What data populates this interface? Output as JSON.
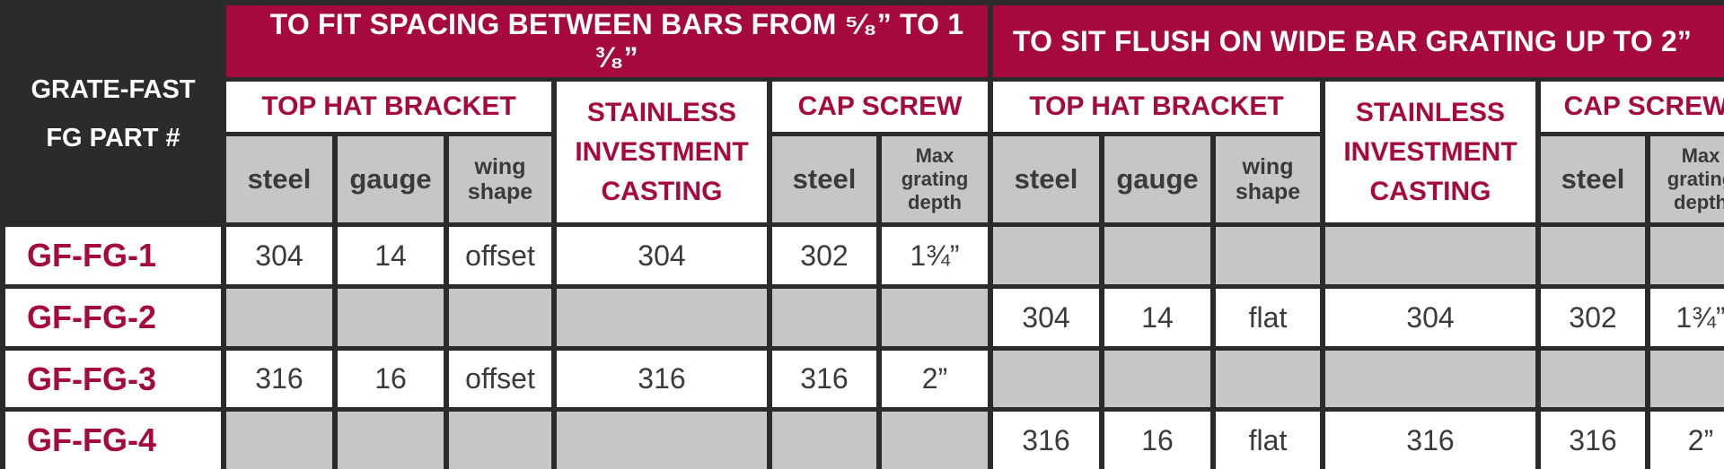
{
  "header": {
    "corner_line1": "GRATE-FAST",
    "corner_line2": "FG PART #",
    "banner_left": "TO FIT SPACING BETWEEN BARS FROM ⁵⁄₈” TO 1 ³⁄₈”",
    "banner_right": "TO SIT FLUSH ON WIDE BAR GRATING UP TO 2”"
  },
  "groups": {
    "top_hat_bracket": "TOP HAT BRACKET",
    "stainless_line1": "STAINLESS",
    "stainless_line2": "INVESTMENT",
    "stainless_line3": "CASTING",
    "cap_screw": "CAP SCREW"
  },
  "subheaders": {
    "steel": "steel",
    "gauge": "gauge",
    "wing_line1": "wing",
    "wing_line2": "shape",
    "max_line1": "Max",
    "max_line2": "grating",
    "max_line3": "depth"
  },
  "rows": [
    {
      "part": "GF-FG-1",
      "left": {
        "steel": "304",
        "gauge": "14",
        "wing": "offset",
        "casting": "304",
        "screw_steel": "302",
        "max_depth": "1¾”"
      },
      "right": null
    },
    {
      "part": "GF-FG-2",
      "left": null,
      "right": {
        "steel": "304",
        "gauge": "14",
        "wing": "flat",
        "casting": "304",
        "screw_steel": "302",
        "max_depth": "1¾”"
      }
    },
    {
      "part": "GF-FG-3",
      "left": {
        "steel": "316",
        "gauge": "16",
        "wing": "offset",
        "casting": "316",
        "screw_steel": "316",
        "max_depth": "2”"
      },
      "right": null
    },
    {
      "part": "GF-FG-4",
      "left": null,
      "right": {
        "steel": "316",
        "gauge": "16",
        "wing": "flat",
        "casting": "316",
        "screw_steel": "316",
        "max_depth": "2”"
      }
    }
  ],
  "colors": {
    "accent": "#a6093d",
    "background": "#2b2b2b",
    "subheader_gray": "#c7c6c7",
    "cell_white": "#ffffff"
  }
}
